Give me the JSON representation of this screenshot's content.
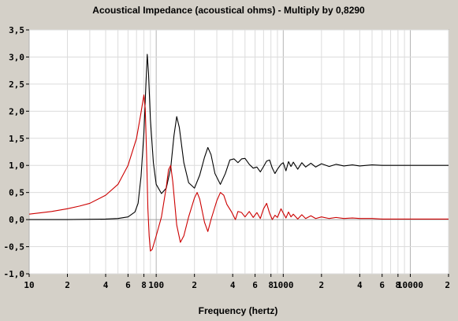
{
  "chart_data": {
    "type": "line",
    "title": "Acoustical Impedance (acoustical ohms) - Multiply by 0,8290",
    "xlabel": "Frequency (hertz)",
    "ylabel": "",
    "x_scale": "log",
    "xlim": [
      10,
      20000
    ],
    "ylim": [
      -1.0,
      3.5
    ],
    "grid": true,
    "y_tick_labels": [
      "3,5",
      "3,0",
      "2,5",
      "2,0",
      "1,5",
      "1,0",
      "0,5",
      "0,0",
      "-0,5",
      "-1,0"
    ],
    "y_tick_values": [
      3.5,
      3.0,
      2.5,
      2.0,
      1.5,
      1.0,
      0.5,
      0.0,
      -0.5,
      -1.0
    ],
    "x_tick_labels": [
      "10",
      "2",
      "4",
      "6",
      "8",
      "100",
      "2",
      "4",
      "6",
      "8",
      "1000",
      "2",
      "4",
      "6",
      "8",
      "10000",
      "2"
    ],
    "x_tick_values": [
      10,
      20,
      40,
      60,
      80,
      100,
      200,
      400,
      600,
      800,
      1000,
      2000,
      4000,
      6000,
      8000,
      10000,
      20000
    ],
    "series": [
      {
        "color": "#000000",
        "points": [
          [
            10,
            0.0
          ],
          [
            20,
            0.0
          ],
          [
            40,
            0.01
          ],
          [
            50,
            0.02
          ],
          [
            60,
            0.05
          ],
          [
            68,
            0.14
          ],
          [
            72,
            0.3
          ],
          [
            76,
            0.8
          ],
          [
            80,
            1.6
          ],
          [
            83,
            2.5
          ],
          [
            85,
            3.05
          ],
          [
            87,
            2.7
          ],
          [
            90,
            1.85
          ],
          [
            95,
            1.05
          ],
          [
            100,
            0.65
          ],
          [
            110,
            0.48
          ],
          [
            120,
            0.58
          ],
          [
            130,
            0.95
          ],
          [
            138,
            1.55
          ],
          [
            145,
            1.9
          ],
          [
            152,
            1.7
          ],
          [
            165,
            1.05
          ],
          [
            180,
            0.68
          ],
          [
            200,
            0.58
          ],
          [
            220,
            0.82
          ],
          [
            240,
            1.15
          ],
          [
            255,
            1.33
          ],
          [
            270,
            1.2
          ],
          [
            290,
            0.85
          ],
          [
            320,
            0.65
          ],
          [
            350,
            0.85
          ],
          [
            380,
            1.1
          ],
          [
            410,
            1.12
          ],
          [
            440,
            1.05
          ],
          [
            470,
            1.12
          ],
          [
            500,
            1.13
          ],
          [
            540,
            1.02
          ],
          [
            580,
            0.95
          ],
          [
            620,
            0.97
          ],
          [
            660,
            0.88
          ],
          [
            700,
            0.98
          ],
          [
            740,
            1.08
          ],
          [
            780,
            1.1
          ],
          [
            820,
            0.95
          ],
          [
            860,
            0.85
          ],
          [
            900,
            0.93
          ],
          [
            960,
            1.02
          ],
          [
            1000,
            1.05
          ],
          [
            1050,
            0.9
          ],
          [
            1100,
            1.07
          ],
          [
            1150,
            0.98
          ],
          [
            1200,
            1.06
          ],
          [
            1300,
            0.93
          ],
          [
            1400,
            1.05
          ],
          [
            1500,
            0.97
          ],
          [
            1650,
            1.04
          ],
          [
            1800,
            0.97
          ],
          [
            2000,
            1.03
          ],
          [
            2300,
            0.98
          ],
          [
            2600,
            1.02
          ],
          [
            3000,
            0.99
          ],
          [
            3500,
            1.01
          ],
          [
            4000,
            0.99
          ],
          [
            5000,
            1.01
          ],
          [
            6000,
            1.0
          ],
          [
            8000,
            1.0
          ],
          [
            10000,
            1.0
          ],
          [
            20000,
            1.0
          ]
        ]
      },
      {
        "color": "#cc0000",
        "points": [
          [
            10,
            0.1
          ],
          [
            15,
            0.15
          ],
          [
            20,
            0.2
          ],
          [
            25,
            0.25
          ],
          [
            30,
            0.3
          ],
          [
            40,
            0.45
          ],
          [
            50,
            0.65
          ],
          [
            60,
            1.0
          ],
          [
            70,
            1.5
          ],
          [
            75,
            1.9
          ],
          [
            80,
            2.3
          ],
          [
            82,
            2.05
          ],
          [
            84,
            1.2
          ],
          [
            86,
            0.2
          ],
          [
            88,
            -0.3
          ],
          [
            90,
            -0.58
          ],
          [
            93,
            -0.55
          ],
          [
            100,
            -0.3
          ],
          [
            110,
            0.05
          ],
          [
            120,
            0.6
          ],
          [
            125,
            0.92
          ],
          [
            130,
            1.0
          ],
          [
            135,
            0.7
          ],
          [
            145,
            -0.1
          ],
          [
            155,
            -0.42
          ],
          [
            165,
            -0.3
          ],
          [
            180,
            0.05
          ],
          [
            200,
            0.4
          ],
          [
            210,
            0.5
          ],
          [
            220,
            0.38
          ],
          [
            240,
            -0.05
          ],
          [
            255,
            -0.22
          ],
          [
            270,
            0.0
          ],
          [
            300,
            0.35
          ],
          [
            320,
            0.5
          ],
          [
            340,
            0.45
          ],
          [
            360,
            0.28
          ],
          [
            390,
            0.15
          ],
          [
            420,
            0.0
          ],
          [
            440,
            0.15
          ],
          [
            470,
            0.13
          ],
          [
            500,
            0.05
          ],
          [
            540,
            0.15
          ],
          [
            580,
            0.04
          ],
          [
            620,
            0.13
          ],
          [
            660,
            0.02
          ],
          [
            700,
            0.2
          ],
          [
            740,
            0.3
          ],
          [
            780,
            0.12
          ],
          [
            820,
            0.0
          ],
          [
            860,
            0.08
          ],
          [
            900,
            0.04
          ],
          [
            960,
            0.2
          ],
          [
            1000,
            0.12
          ],
          [
            1050,
            0.03
          ],
          [
            1100,
            0.14
          ],
          [
            1150,
            0.05
          ],
          [
            1200,
            0.1
          ],
          [
            1300,
            0.01
          ],
          [
            1400,
            0.09
          ],
          [
            1500,
            0.02
          ],
          [
            1650,
            0.07
          ],
          [
            1800,
            0.02
          ],
          [
            2000,
            0.05
          ],
          [
            2300,
            0.02
          ],
          [
            2600,
            0.04
          ],
          [
            3000,
            0.02
          ],
          [
            3500,
            0.03
          ],
          [
            4000,
            0.02
          ],
          [
            5000,
            0.02
          ],
          [
            6000,
            0.01
          ],
          [
            8000,
            0.01
          ],
          [
            10000,
            0.01
          ],
          [
            20000,
            0.01
          ]
        ]
      }
    ]
  }
}
